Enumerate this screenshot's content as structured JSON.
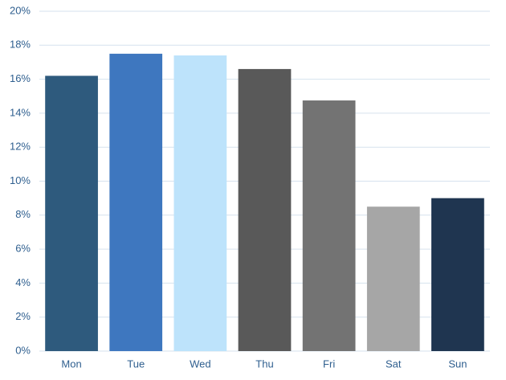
{
  "chart_data": {
    "type": "bar",
    "categories": [
      "Mon",
      "Tue",
      "Wed",
      "Thu",
      "Fri",
      "Sat",
      "Sun"
    ],
    "values": [
      16.2,
      17.5,
      17.4,
      16.6,
      14.75,
      8.5,
      9.0
    ],
    "colors": [
      "#2e5a7d",
      "#3e77bf",
      "#bde3fb",
      "#595959",
      "#737373",
      "#a6a6a6",
      "#1f3550"
    ],
    "ylim": [
      0,
      20
    ],
    "yticks": [
      {
        "value": 0,
        "label": "0%"
      },
      {
        "value": 2,
        "label": "2%"
      },
      {
        "value": 4,
        "label": "4%"
      },
      {
        "value": 6,
        "label": "6%"
      },
      {
        "value": 8,
        "label": "8%"
      },
      {
        "value": 10,
        "label": "10%"
      },
      {
        "value": 12,
        "label": "12%"
      },
      {
        "value": 14,
        "label": "14%"
      },
      {
        "value": 16,
        "label": "16%"
      },
      {
        "value": 18,
        "label": "18%"
      },
      {
        "value": 20,
        "label": "20%"
      }
    ],
    "grid": true
  }
}
